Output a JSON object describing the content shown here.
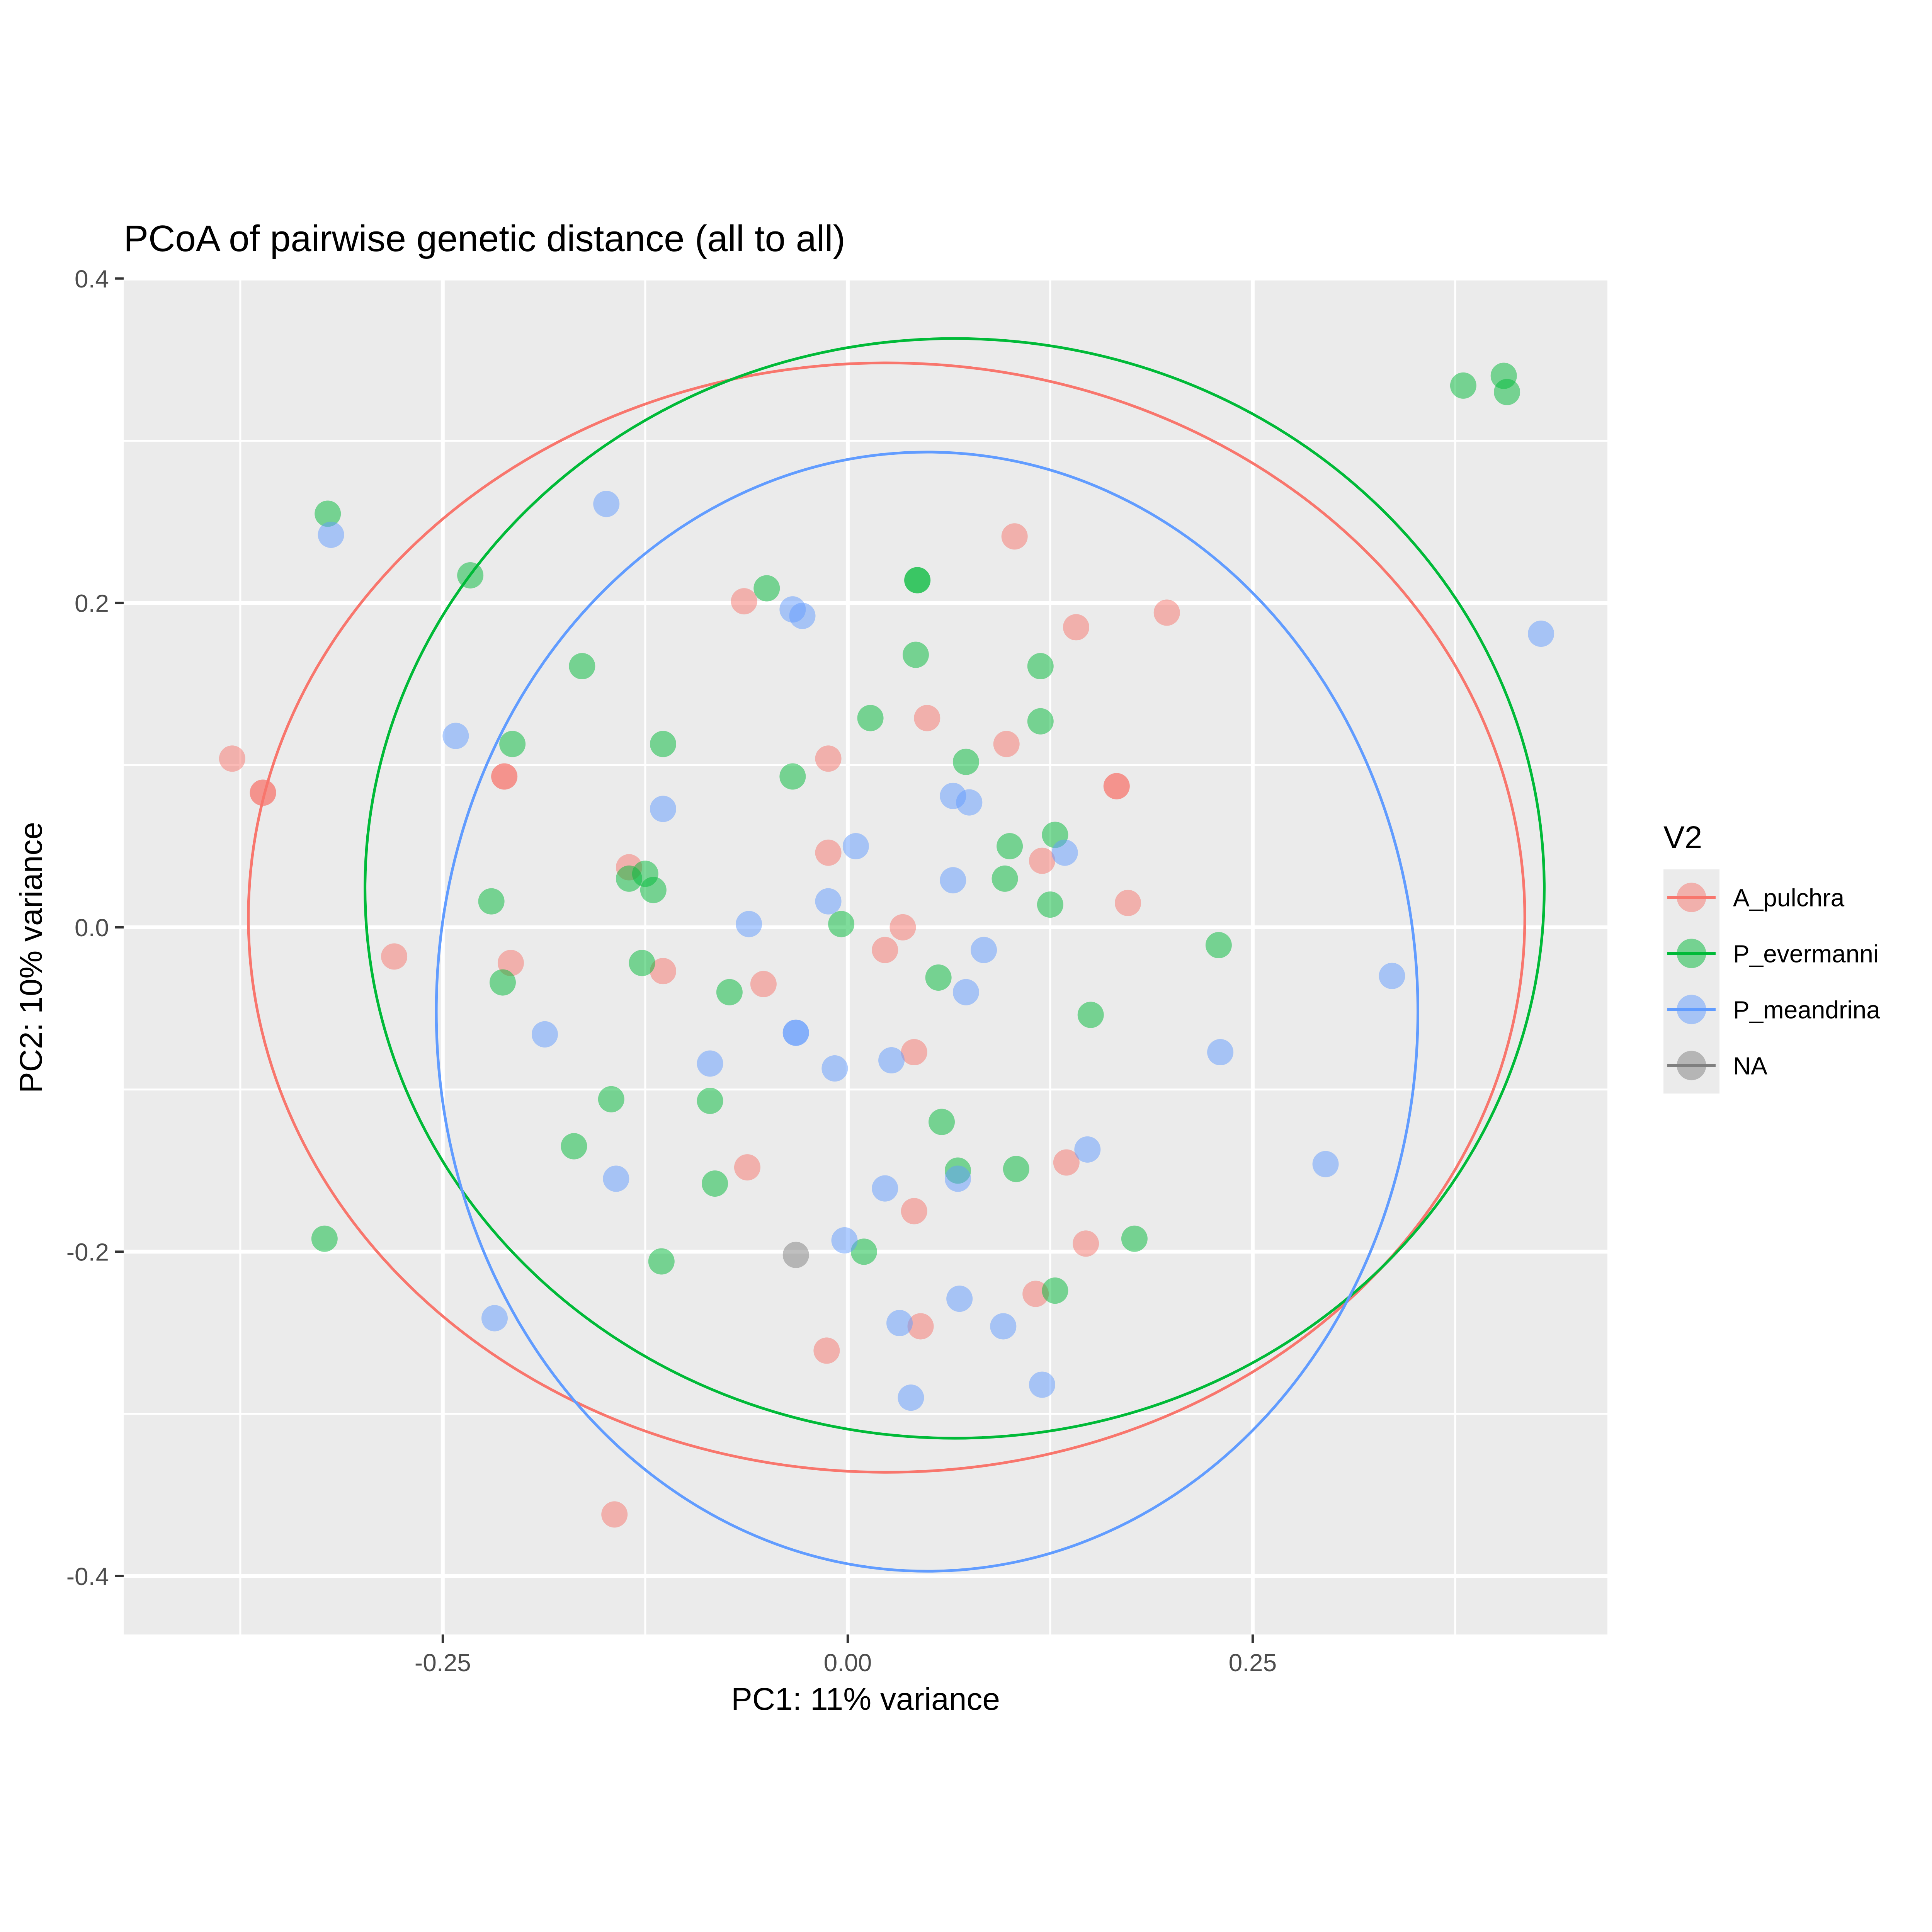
{
  "chart_data": {
    "type": "scatter",
    "title": "PCoA of  pairwise genetic distance (all to all)",
    "xlabel": "PC1: 11% variance",
    "ylabel": "PC2: 10% variance",
    "xlim": [
      -0.447,
      0.469
    ],
    "ylim": [
      -0.436,
      0.399
    ],
    "x_ticks": [
      {
        "value": -0.25,
        "label": "-0.25"
      },
      {
        "value": 0.0,
        "label": "0.00"
      },
      {
        "value": 0.25,
        "label": "0.25"
      }
    ],
    "y_ticks": [
      {
        "value": -0.4,
        "label": "-0.4"
      },
      {
        "value": -0.2,
        "label": "-0.2"
      },
      {
        "value": 0.0,
        "label": "0.0"
      },
      {
        "value": 0.2,
        "label": "0.2"
      },
      {
        "value": 0.4,
        "label": "0.4"
      }
    ],
    "grid": true,
    "panel_background": "#ebebeb",
    "legend": {
      "title": "V2",
      "position": "right"
    },
    "series": [
      {
        "name": "A_pulchra",
        "color": "#F8766D",
        "ellipse": {
          "cx": 0.024,
          "cy": 0.006,
          "rx": 0.394,
          "ry": 0.342
        },
        "points": [
          [
            -0.38,
            0.104
          ],
          [
            -0.361,
            0.083
          ],
          [
            -0.361,
            0.083
          ],
          [
            -0.212,
            0.093
          ],
          [
            -0.212,
            0.093
          ],
          [
            -0.28,
            -0.018
          ],
          [
            -0.208,
            -0.022
          ],
          [
            -0.135,
            0.037
          ],
          [
            -0.114,
            -0.027
          ],
          [
            -0.064,
            0.201
          ],
          [
            -0.052,
            -0.035
          ],
          [
            -0.012,
            0.104
          ],
          [
            -0.012,
            0.046
          ],
          [
            0.034,
            0.0
          ],
          [
            0.023,
            -0.014
          ],
          [
            0.049,
            0.129
          ],
          [
            0.041,
            -0.077
          ],
          [
            0.103,
            0.241
          ],
          [
            0.098,
            0.113
          ],
          [
            0.12,
            0.041
          ],
          [
            0.141,
            0.185
          ],
          [
            0.166,
            0.087
          ],
          [
            0.166,
            0.087
          ],
          [
            0.173,
            0.015
          ],
          [
            0.197,
            0.194
          ],
          [
            -0.062,
            -0.148
          ],
          [
            0.041,
            -0.175
          ],
          [
            0.135,
            -0.145
          ],
          [
            0.147,
            -0.195
          ],
          [
            0.116,
            -0.226
          ],
          [
            0.045,
            -0.246
          ],
          [
            -0.013,
            -0.261
          ],
          [
            -0.144,
            -0.362
          ]
        ]
      },
      {
        "name": "P_evermanni",
        "color": "#00BA38",
        "ellipse": {
          "cx": 0.066,
          "cy": 0.024,
          "rx": 0.364,
          "ry": 0.339
        },
        "points": [
          [
            -0.321,
            0.255
          ],
          [
            -0.233,
            0.217
          ],
          [
            -0.207,
            0.113
          ],
          [
            -0.164,
            0.161
          ],
          [
            -0.114,
            0.113
          ],
          [
            -0.05,
            0.209
          ],
          [
            -0.034,
            0.093
          ],
          [
            0.014,
            0.129
          ],
          [
            0.043,
            0.214
          ],
          [
            0.043,
            0.214
          ],
          [
            0.042,
            0.168
          ],
          [
            0.073,
            0.102
          ],
          [
            0.119,
            0.161
          ],
          [
            0.119,
            0.127
          ],
          [
            0.1,
            0.05
          ],
          [
            0.128,
            0.057
          ],
          [
            0.097,
            0.03
          ],
          [
            0.125,
            0.014
          ],
          [
            -0.22,
            0.016
          ],
          [
            -0.135,
            0.03
          ],
          [
            -0.125,
            0.033
          ],
          [
            -0.12,
            0.023
          ],
          [
            -0.004,
            0.002
          ],
          [
            -0.213,
            -0.034
          ],
          [
            -0.127,
            -0.022
          ],
          [
            -0.073,
            -0.04
          ],
          [
            0.056,
            -0.031
          ],
          [
            0.229,
            -0.011
          ],
          [
            0.15,
            -0.054
          ],
          [
            -0.146,
            -0.106
          ],
          [
            -0.085,
            -0.107
          ],
          [
            -0.169,
            -0.135
          ],
          [
            -0.082,
            -0.158
          ],
          [
            0.058,
            -0.12
          ],
          [
            0.068,
            -0.15
          ],
          [
            0.104,
            -0.149
          ],
          [
            0.177,
            -0.192
          ],
          [
            -0.323,
            -0.192
          ],
          [
            -0.115,
            -0.206
          ],
          [
            0.01,
            -0.2
          ],
          [
            0.128,
            -0.224
          ],
          [
            0.38,
            0.334
          ],
          [
            0.405,
            0.34
          ],
          [
            0.407,
            0.33
          ]
        ]
      },
      {
        "name": "P_meandrina",
        "color": "#619CFF",
        "ellipse": {
          "cx": 0.049,
          "cy": -0.052,
          "rx": 0.303,
          "ry": 0.345
        },
        "points": [
          [
            -0.319,
            0.242
          ],
          [
            -0.149,
            0.261
          ],
          [
            -0.242,
            0.118
          ],
          [
            -0.114,
            0.073
          ],
          [
            -0.034,
            0.196
          ],
          [
            -0.028,
            0.192
          ],
          [
            0.065,
            0.081
          ],
          [
            0.075,
            0.077
          ],
          [
            0.005,
            0.05
          ],
          [
            0.134,
            0.046
          ],
          [
            -0.012,
            0.016
          ],
          [
            0.065,
            0.029
          ],
          [
            -0.061,
            0.002
          ],
          [
            0.084,
            -0.014
          ],
          [
            0.073,
            -0.04
          ],
          [
            -0.187,
            -0.066
          ],
          [
            -0.032,
            -0.065
          ],
          [
            -0.032,
            -0.065
          ],
          [
            -0.085,
            -0.084
          ],
          [
            -0.008,
            -0.087
          ],
          [
            0.027,
            -0.082
          ],
          [
            0.23,
            -0.077
          ],
          [
            0.336,
            -0.03
          ],
          [
            -0.143,
            -0.155
          ],
          [
            0.023,
            -0.161
          ],
          [
            0.068,
            -0.155
          ],
          [
            0.148,
            -0.137
          ],
          [
            0.295,
            -0.146
          ],
          [
            -0.002,
            -0.193
          ],
          [
            -0.218,
            -0.241
          ],
          [
            0.032,
            -0.244
          ],
          [
            0.069,
            -0.229
          ],
          [
            0.096,
            -0.246
          ],
          [
            0.039,
            -0.29
          ],
          [
            0.12,
            -0.282
          ],
          [
            0.428,
            0.181
          ]
        ]
      },
      {
        "name": "NA",
        "color": "#7F7F7F",
        "ellipse": null,
        "points": [
          [
            -0.032,
            -0.202
          ]
        ]
      }
    ]
  }
}
